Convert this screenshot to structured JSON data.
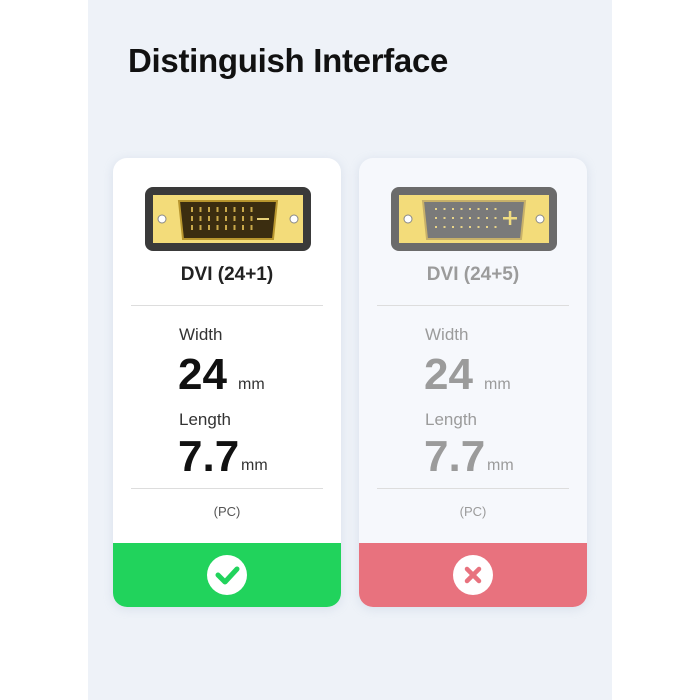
{
  "title": "Distinguish Interface",
  "cards": [
    {
      "name": "DVI (24+1)",
      "width_label": "Width",
      "width_value": "24",
      "width_unit": "mm",
      "length_label": "Length",
      "length_value": "7.7",
      "length_unit": "mm",
      "note": "(PC)",
      "status": "compatible",
      "status_icon": "check-icon",
      "band_color": "#21d35c"
    },
    {
      "name": "DVI (24+5)",
      "width_label": "Width",
      "width_value": "24",
      "width_unit": "mm",
      "length_label": "Length",
      "length_value": "7.7",
      "length_unit": "mm",
      "note": "(PC)",
      "status": "incompatible",
      "status_icon": "x-icon",
      "band_color": "#e8727e"
    }
  ]
}
